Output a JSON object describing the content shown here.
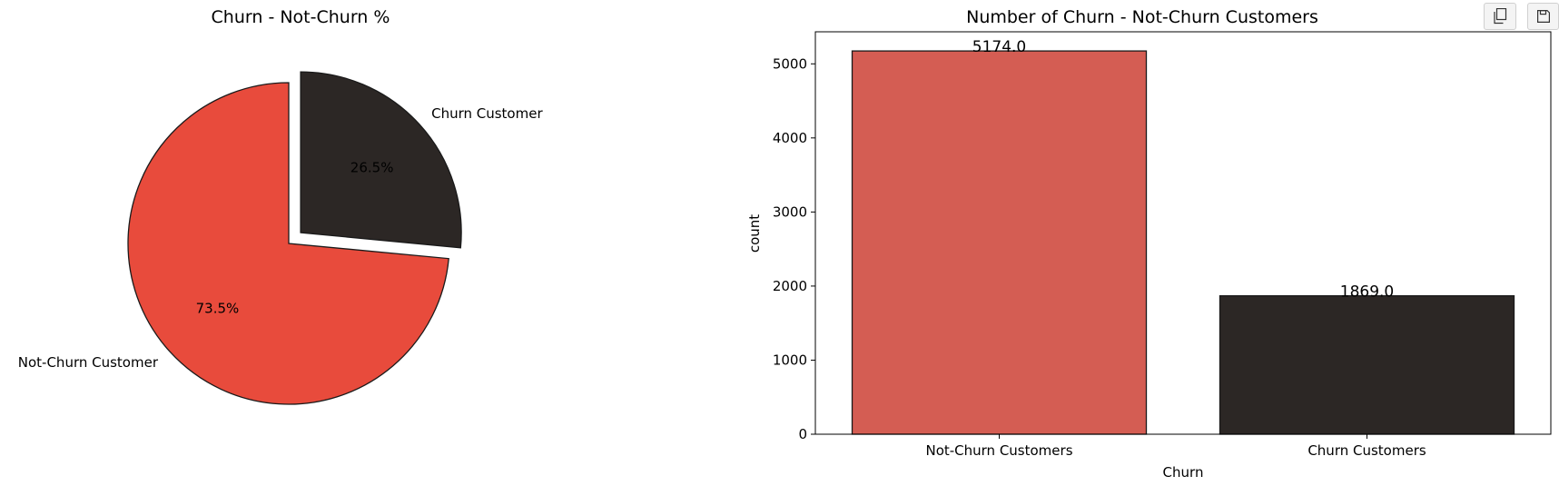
{
  "colors": {
    "not_churn": "#e84b3c",
    "churn": "#2c2725",
    "not_churn_bar": "#d45d53",
    "edge": "#1a1a1a"
  },
  "toolbar": {
    "copy_icon": "copy-icon",
    "save_icon": "save-icon"
  },
  "chart_data": [
    {
      "type": "pie",
      "title": "Churn - Not-Churn %",
      "labels": [
        "Not-Churn Customer",
        "Churn Customer"
      ],
      "values": [
        73.5,
        26.5
      ],
      "value_labels": [
        "73.5%",
        "26.5%"
      ],
      "explode": [
        0,
        0.1
      ],
      "start_angle_deg": 90
    },
    {
      "type": "bar",
      "title": "Number of Churn - Not-Churn Customers",
      "categories": [
        "Not-Churn Customers",
        "Churn Customers"
      ],
      "values": [
        5174,
        1869
      ],
      "value_labels": [
        "5174.0",
        "1869.0"
      ],
      "xlabel": "Churn",
      "ylabel": "count",
      "ylim": [
        0,
        5432.7
      ],
      "yticks": [
        0,
        1000,
        2000,
        3000,
        4000,
        5000
      ],
      "grid": false
    }
  ]
}
